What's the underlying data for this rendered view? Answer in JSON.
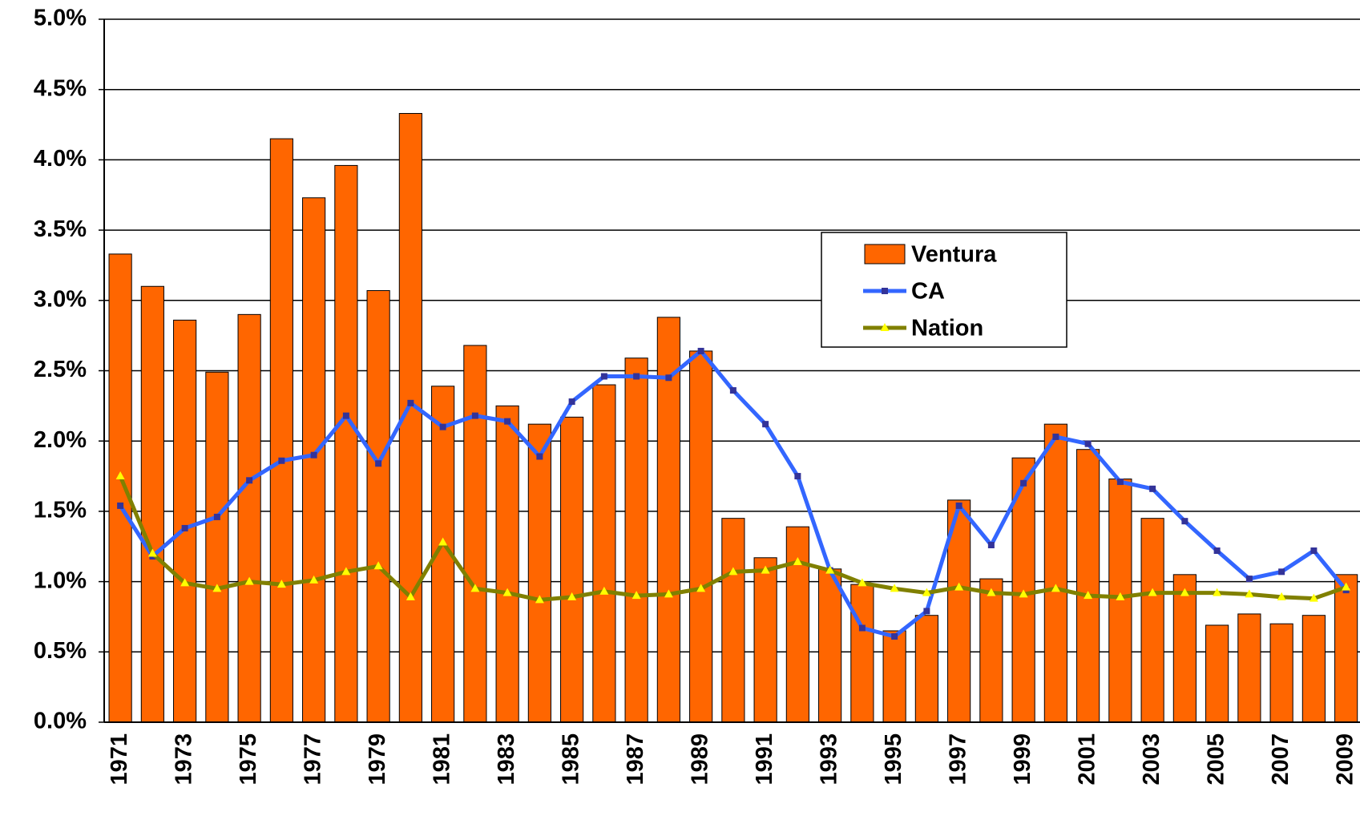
{
  "chart_data": {
    "type": "bar",
    "categories": [
      "1971",
      null,
      "1973",
      null,
      "1975",
      null,
      "1977",
      null,
      "1979",
      null,
      "1981",
      null,
      "1983",
      null,
      "1985",
      null,
      "1987",
      null,
      "1989",
      null,
      "1991",
      null,
      "1993",
      null,
      "1995",
      null,
      "1997",
      null,
      "1999",
      null,
      "2001",
      null,
      "2003",
      null,
      "2005",
      null,
      "2007",
      null,
      "2009"
    ],
    "series": [
      {
        "name": "Ventura",
        "type": "bar",
        "color": "#ff6600",
        "values": [
          3.33,
          3.1,
          2.86,
          2.49,
          2.9,
          4.15,
          3.73,
          3.96,
          3.07,
          4.33,
          2.39,
          2.68,
          2.25,
          2.12,
          2.17,
          2.4,
          2.59,
          2.88,
          2.64,
          1.45,
          1.17,
          1.39,
          1.09,
          0.98,
          0.65,
          0.76,
          1.58,
          1.02,
          1.88,
          2.12,
          1.94,
          1.73,
          1.45,
          1.05,
          0.69,
          0.77,
          0.7,
          0.76,
          1.05
        ]
      },
      {
        "name": "CA",
        "type": "line",
        "color": "#3366ff",
        "marker": "square",
        "marker_color": "#333399",
        "values": [
          1.54,
          1.18,
          1.38,
          1.46,
          1.72,
          1.86,
          1.9,
          2.18,
          1.84,
          2.27,
          2.1,
          2.18,
          2.14,
          1.89,
          2.28,
          2.46,
          2.46,
          2.45,
          2.64,
          2.36,
          2.12,
          1.75,
          1.08,
          0.67,
          0.61,
          0.79,
          1.54,
          1.26,
          1.7,
          2.03,
          1.98,
          1.71,
          1.66,
          1.43,
          1.22,
          1.02,
          1.07,
          1.22,
          0.94
        ]
      },
      {
        "name": "Nation",
        "type": "line",
        "color": "#808000",
        "marker": "triangle",
        "marker_color": "#ffff00",
        "values": [
          1.75,
          1.2,
          0.99,
          0.95,
          1.0,
          0.98,
          1.01,
          1.07,
          1.11,
          0.89,
          1.28,
          0.95,
          0.92,
          0.87,
          0.89,
          0.93,
          0.9,
          0.91,
          0.95,
          1.07,
          1.08,
          1.14,
          1.08,
          0.99,
          0.95,
          0.92,
          0.96,
          0.92,
          0.91,
          0.95,
          0.9,
          0.89,
          0.92,
          0.92,
          0.92,
          0.91,
          0.89,
          0.88,
          0.96
        ]
      }
    ],
    "ylim": [
      0,
      5
    ],
    "yticks": [
      {
        "value": 0,
        "label": "0.0%"
      },
      {
        "value": 0.5,
        "label": "0.5%"
      },
      {
        "value": 1,
        "label": "1.0%"
      },
      {
        "value": 1.5,
        "label": "1.5%"
      },
      {
        "value": 2,
        "label": "2.0%"
      },
      {
        "value": 2.5,
        "label": "2.5%"
      },
      {
        "value": 3,
        "label": "3.0%"
      },
      {
        "value": 3.5,
        "label": "3.5%"
      },
      {
        "value": 4,
        "label": "4.0%"
      },
      {
        "value": 4.5,
        "label": "4.5%"
      },
      {
        "value": 5,
        "label": "5.0%"
      }
    ],
    "grid": true,
    "legend": "center right"
  }
}
